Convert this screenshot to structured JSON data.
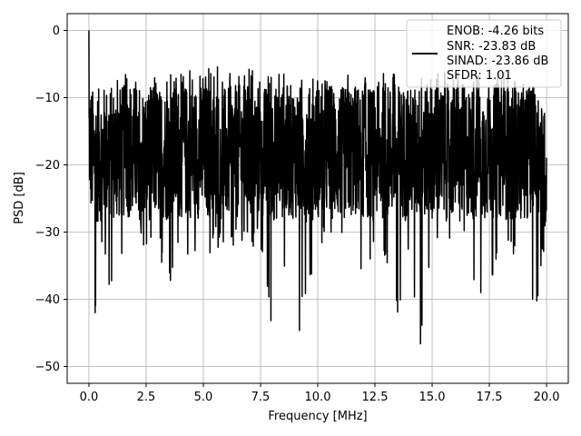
{
  "chart_data": {
    "type": "line",
    "title": "",
    "xlabel": "Frequency [MHz]",
    "ylabel": "PSD [dB]",
    "xlim": [
      -0.95,
      20.95
    ],
    "ylim": [
      -52.5,
      2.5
    ],
    "xticks": [
      0.0,
      2.5,
      5.0,
      7.5,
      10.0,
      12.5,
      15.0,
      17.5,
      20.0
    ],
    "xtick_labels": [
      "0.0",
      "2.5",
      "5.0",
      "7.5",
      "10.0",
      "12.5",
      "15.0",
      "17.5",
      "20.0"
    ],
    "yticks": [
      0,
      -10,
      -20,
      -30,
      -40,
      -50
    ],
    "ytick_labels": [
      "0",
      "−10",
      "−20",
      "−30",
      "−40",
      "−50"
    ],
    "grid": true,
    "legend_position": "top-right",
    "series": [
      {
        "color": "#000000",
        "x": [
          0.0,
          0.2,
          0.5,
          0.9,
          1.2,
          1.6,
          2.0,
          2.5,
          3.0,
          3.5,
          4.0,
          4.5,
          5.0,
          5.5,
          6.0,
          6.5,
          7.0,
          7.5,
          8.0,
          8.5,
          9.0,
          9.5,
          10.0,
          10.5,
          11.0,
          11.5,
          12.0,
          12.5,
          13.0,
          13.5,
          14.0,
          14.5,
          15.0,
          15.5,
          16.0,
          16.5,
          17.0,
          17.5,
          18.0,
          18.5,
          19.0,
          19.5,
          20.0
        ],
        "y_max": [
          0.0,
          -6.5,
          -7.5,
          -8.0,
          -7.0,
          -6.5,
          -7.5,
          -6.5,
          -6.5,
          -6.5,
          -6.0,
          -5.5,
          -6.0,
          -5.0,
          -6.5,
          -5.5,
          -5.5,
          -6.0,
          -6.0,
          -6.5,
          -6.0,
          -5.5,
          -6.0,
          -6.5,
          -6.0,
          -6.0,
          -6.5,
          -6.0,
          -6.5,
          -6.0,
          -7.5,
          -6.5,
          -6.5,
          -6.0,
          -6.0,
          -7.5,
          -6.5,
          -6.5,
          -6.0,
          -7.0,
          -7.5,
          -8.5,
          -12.5
        ],
        "y_min": [
          -22.0,
          -46.5,
          -31.0,
          -38.5,
          -38.5,
          -30.0,
          -27.0,
          -34.5,
          -32.5,
          -38.0,
          -32.0,
          -35.0,
          -37.0,
          -31.5,
          -34.5,
          -31.0,
          -33.0,
          -32.0,
          -45.5,
          -36.0,
          -49.5,
          -38.5,
          -34.0,
          -30.5,
          -33.0,
          -30.5,
          -40.5,
          -30.5,
          -35.5,
          -43.5,
          -34.0,
          -47.5,
          -33.0,
          -33.5,
          -31.5,
          -30.5,
          -43.0,
          -38.5,
          -33.0,
          -33.5,
          -39.0,
          -43.0,
          -30.0
        ],
        "y_typical": [
          -15.0,
          -17.0,
          -16.5,
          -16.0,
          -16.5,
          -16.0,
          -16.0,
          -16.5,
          -16.0,
          -16.5,
          -16.0,
          -16.0,
          -16.0,
          -16.0,
          -16.5,
          -16.0,
          -16.0,
          -16.0,
          -16.5,
          -16.0,
          -16.0,
          -16.5,
          -16.0,
          -16.0,
          -16.5,
          -16.0,
          -16.0,
          -16.5,
          -16.0,
          -16.0,
          -16.5,
          -16.0,
          -16.0,
          -16.5,
          -16.0,
          -16.0,
          -16.5,
          -16.0,
          -16.0,
          -16.5,
          -16.0,
          -16.0,
          -18.0
        ]
      }
    ],
    "legend_lines": [
      "ENOB: -4.26 bits",
      "SNR: -23.83 dB",
      "SINAD: -23.86 dB",
      "SFDR: 1.01"
    ]
  }
}
